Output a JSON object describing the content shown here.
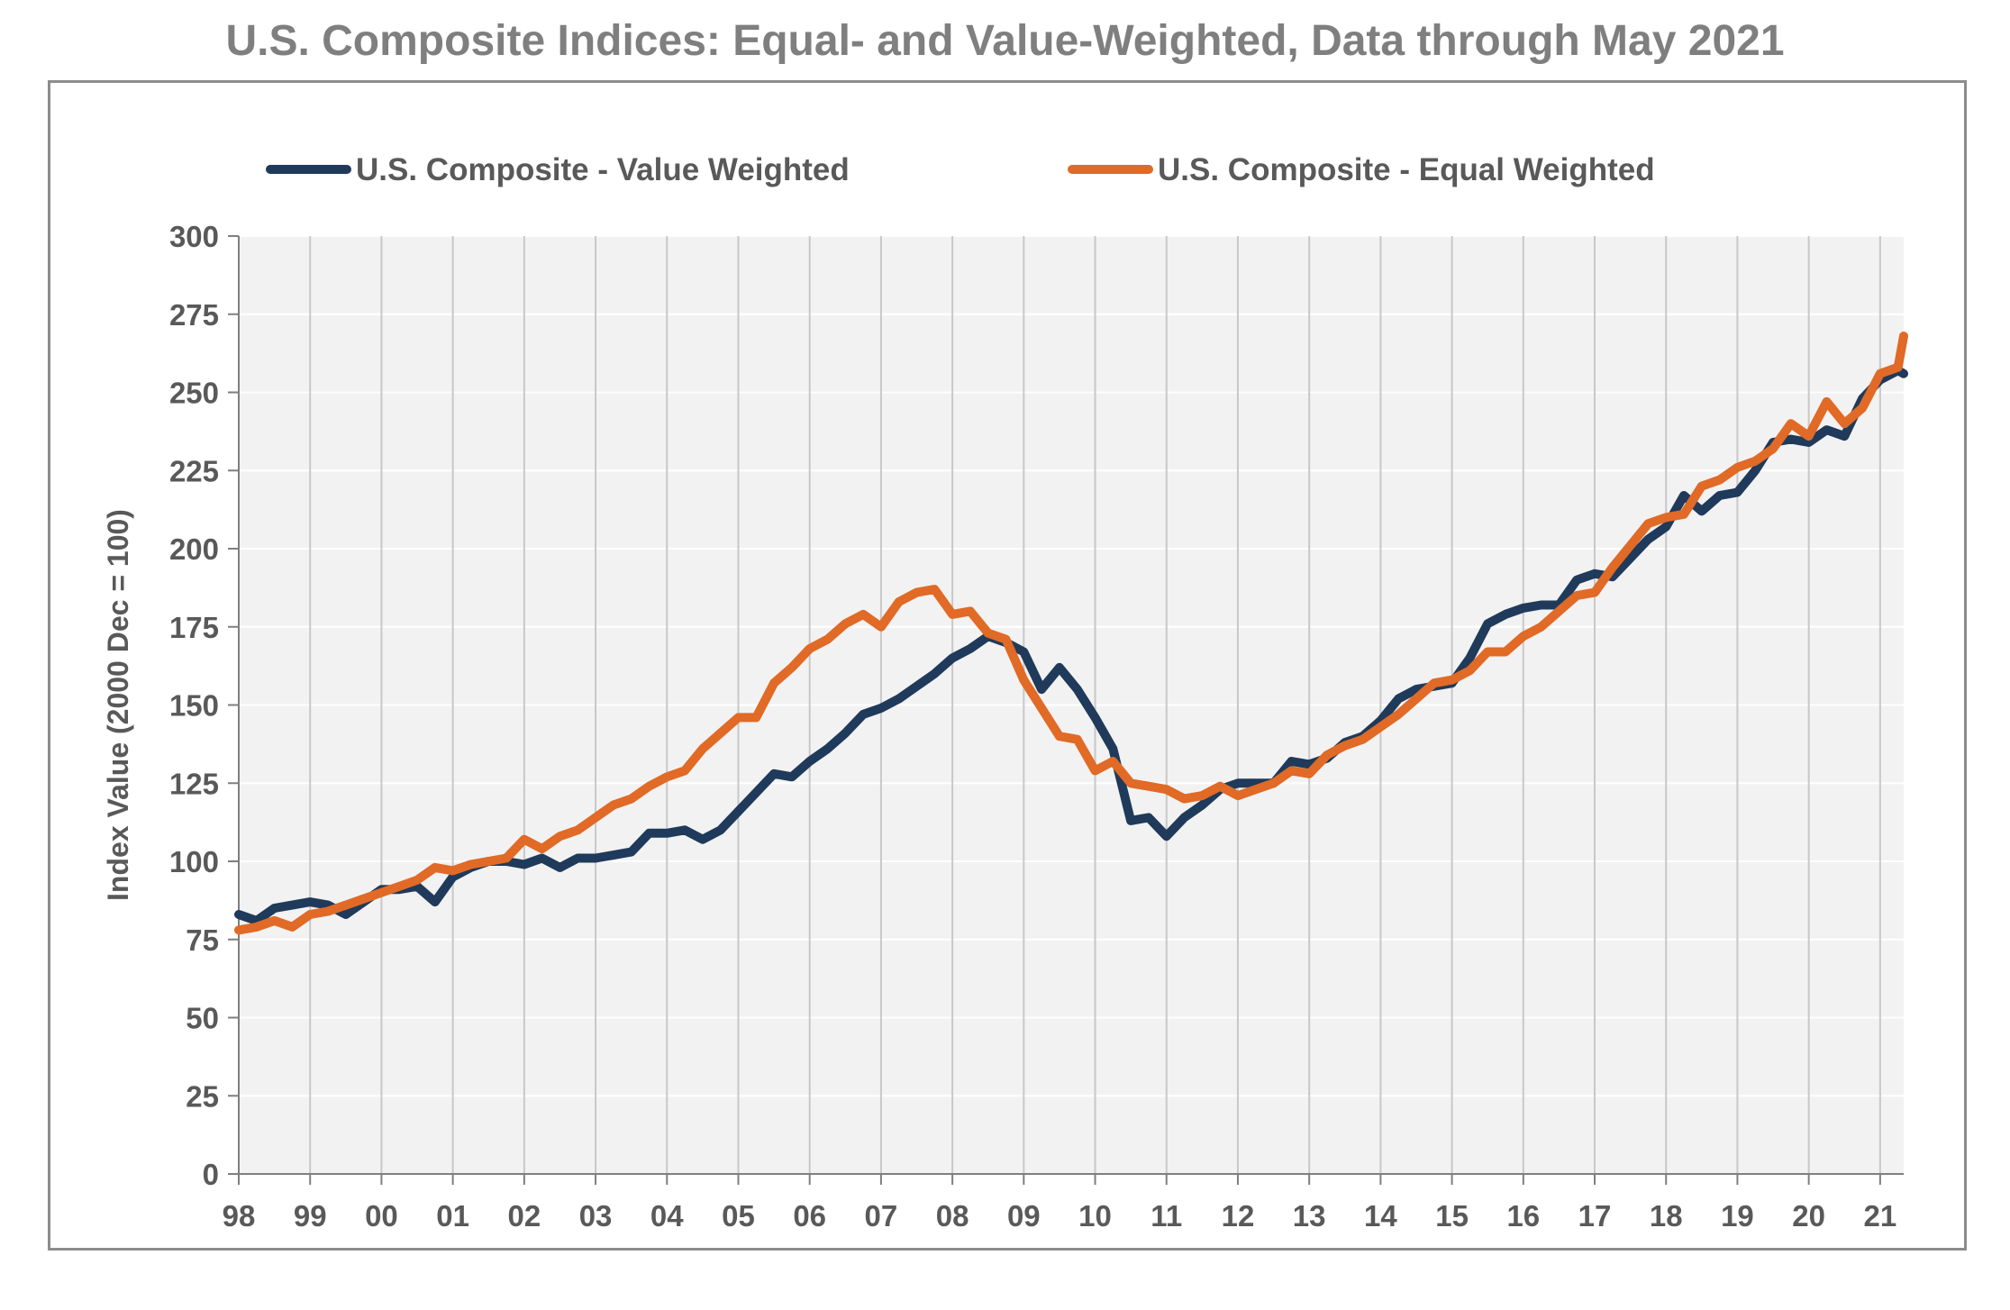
{
  "chart_data": {
    "type": "line",
    "title": "U.S. Composite Indices: Equal- and Value-Weighted, Data through May 2021",
    "xlabel": "",
    "ylabel": "Index Value (2000 Dec = 100)",
    "xlim": [
      1998.0,
      2021.33
    ],
    "ylim": [
      0,
      300
    ],
    "y_ticks": [
      0,
      25,
      50,
      75,
      100,
      125,
      150,
      175,
      200,
      225,
      250,
      275,
      300
    ],
    "x_ticks": [
      1998,
      1999,
      2000,
      2001,
      2002,
      2003,
      2004,
      2005,
      2006,
      2007,
      2008,
      2009,
      2010,
      2011,
      2012,
      2013,
      2014,
      2015,
      2016,
      2017,
      2018,
      2019,
      2020,
      2021
    ],
    "x_tick_labels": [
      "98",
      "99",
      "00",
      "01",
      "02",
      "03",
      "04",
      "05",
      "06",
      "07",
      "08",
      "09",
      "10",
      "11",
      "12",
      "13",
      "14",
      "15",
      "16",
      "17",
      "18",
      "19",
      "20",
      "21"
    ],
    "grid": "vertical",
    "legend_position": "top",
    "series": [
      {
        "name": "U.S. Composite - Value Weighted",
        "color": "#1f3a5a",
        "points": [
          [
            1998.0,
            83
          ],
          [
            1998.25,
            81
          ],
          [
            1998.5,
            85
          ],
          [
            1998.75,
            86
          ],
          [
            1999.0,
            87
          ],
          [
            1999.25,
            86
          ],
          [
            1999.5,
            83
          ],
          [
            1999.75,
            87
          ],
          [
            2000.0,
            91
          ],
          [
            2000.25,
            91
          ],
          [
            2000.5,
            92
          ],
          [
            2000.75,
            87
          ],
          [
            2001.0,
            95
          ],
          [
            2001.25,
            98
          ],
          [
            2001.5,
            100
          ],
          [
            2001.75,
            100
          ],
          [
            2002.0,
            99
          ],
          [
            2002.25,
            101
          ],
          [
            2002.5,
            98
          ],
          [
            2002.75,
            101
          ],
          [
            2003.0,
            101
          ],
          [
            2003.25,
            102
          ],
          [
            2003.5,
            103
          ],
          [
            2003.75,
            109
          ],
          [
            2004.0,
            109
          ],
          [
            2004.25,
            110
          ],
          [
            2004.5,
            107
          ],
          [
            2004.75,
            110
          ],
          [
            2005.0,
            116
          ],
          [
            2005.25,
            122
          ],
          [
            2005.5,
            128
          ],
          [
            2005.75,
            127
          ],
          [
            2006.0,
            132
          ],
          [
            2006.25,
            136
          ],
          [
            2006.5,
            141
          ],
          [
            2006.75,
            147
          ],
          [
            2007.0,
            149
          ],
          [
            2007.25,
            152
          ],
          [
            2007.5,
            156
          ],
          [
            2007.75,
            160
          ],
          [
            2008.0,
            165
          ],
          [
            2008.25,
            168
          ],
          [
            2008.5,
            172
          ],
          [
            2008.75,
            170
          ],
          [
            2009.0,
            167
          ],
          [
            2009.25,
            155
          ],
          [
            2009.5,
            162
          ],
          [
            2009.75,
            155
          ],
          [
            2010.0,
            146
          ],
          [
            2010.25,
            136
          ],
          [
            2010.5,
            113
          ],
          [
            2010.75,
            114
          ],
          [
            2011.0,
            108
          ],
          [
            2011.25,
            114
          ],
          [
            2011.5,
            118
          ],
          [
            2011.75,
            123
          ],
          [
            2012.0,
            125
          ],
          [
            2012.25,
            125
          ],
          [
            2012.5,
            125
          ],
          [
            2012.75,
            132
          ],
          [
            2013.0,
            131
          ],
          [
            2013.25,
            133
          ],
          [
            2013.5,
            138
          ],
          [
            2013.75,
            140
          ],
          [
            2014.0,
            145
          ],
          [
            2014.25,
            152
          ],
          [
            2014.5,
            155
          ],
          [
            2014.75,
            156
          ],
          [
            2015.0,
            157
          ],
          [
            2015.25,
            165
          ],
          [
            2015.5,
            176
          ],
          [
            2015.75,
            179
          ],
          [
            2016.0,
            181
          ],
          [
            2016.25,
            182
          ],
          [
            2016.5,
            182
          ],
          [
            2016.75,
            190
          ],
          [
            2017.0,
            192
          ],
          [
            2017.25,
            191
          ],
          [
            2017.5,
            197
          ],
          [
            2017.75,
            203
          ],
          [
            2018.0,
            207
          ],
          [
            2018.25,
            217
          ],
          [
            2018.5,
            212
          ],
          [
            2018.75,
            217
          ],
          [
            2019.0,
            218
          ],
          [
            2019.25,
            225
          ],
          [
            2019.5,
            234
          ],
          [
            2019.75,
            235
          ],
          [
            2020.0,
            234
          ],
          [
            2020.25,
            238
          ],
          [
            2020.5,
            236
          ],
          [
            2020.75,
            248
          ],
          [
            2021.0,
            254
          ],
          [
            2021.25,
            257
          ],
          [
            2021.33,
            256
          ]
        ]
      },
      {
        "name": "U.S. Composite - Equal Weighted",
        "color": "#e06a26",
        "points": [
          [
            1998.0,
            78
          ],
          [
            1998.25,
            79
          ],
          [
            1998.5,
            81
          ],
          [
            1998.75,
            79
          ],
          [
            1999.0,
            83
          ],
          [
            1999.25,
            84
          ],
          [
            1999.5,
            86
          ],
          [
            1999.75,
            88
          ],
          [
            2000.0,
            90
          ],
          [
            2000.25,
            92
          ],
          [
            2000.5,
            94
          ],
          [
            2000.75,
            98
          ],
          [
            2001.0,
            97
          ],
          [
            2001.25,
            99
          ],
          [
            2001.5,
            100
          ],
          [
            2001.75,
            101
          ],
          [
            2002.0,
            107
          ],
          [
            2002.25,
            104
          ],
          [
            2002.5,
            108
          ],
          [
            2002.75,
            110
          ],
          [
            2003.0,
            114
          ],
          [
            2003.25,
            118
          ],
          [
            2003.5,
            120
          ],
          [
            2003.75,
            124
          ],
          [
            2004.0,
            127
          ],
          [
            2004.25,
            129
          ],
          [
            2004.5,
            136
          ],
          [
            2004.75,
            141
          ],
          [
            2005.0,
            146
          ],
          [
            2005.25,
            146
          ],
          [
            2005.5,
            157
          ],
          [
            2005.75,
            162
          ],
          [
            2006.0,
            168
          ],
          [
            2006.25,
            171
          ],
          [
            2006.5,
            176
          ],
          [
            2006.75,
            179
          ],
          [
            2007.0,
            175
          ],
          [
            2007.25,
            183
          ],
          [
            2007.5,
            186
          ],
          [
            2007.75,
            187
          ],
          [
            2008.0,
            179
          ],
          [
            2008.25,
            180
          ],
          [
            2008.5,
            173
          ],
          [
            2008.75,
            171
          ],
          [
            2009.0,
            158
          ],
          [
            2009.25,
            149
          ],
          [
            2009.5,
            140
          ],
          [
            2009.75,
            139
          ],
          [
            2010.0,
            129
          ],
          [
            2010.25,
            132
          ],
          [
            2010.5,
            125
          ],
          [
            2010.75,
            124
          ],
          [
            2011.0,
            123
          ],
          [
            2011.25,
            120
          ],
          [
            2011.5,
            121
          ],
          [
            2011.75,
            124
          ],
          [
            2012.0,
            121
          ],
          [
            2012.25,
            123
          ],
          [
            2012.5,
            125
          ],
          [
            2012.75,
            129
          ],
          [
            2013.0,
            128
          ],
          [
            2013.25,
            134
          ],
          [
            2013.5,
            137
          ],
          [
            2013.75,
            139
          ],
          [
            2014.0,
            143
          ],
          [
            2014.25,
            147
          ],
          [
            2014.5,
            152
          ],
          [
            2014.75,
            157
          ],
          [
            2015.0,
            158
          ],
          [
            2015.25,
            161
          ],
          [
            2015.5,
            167
          ],
          [
            2015.75,
            167
          ],
          [
            2016.0,
            172
          ],
          [
            2016.25,
            175
          ],
          [
            2016.5,
            180
          ],
          [
            2016.75,
            185
          ],
          [
            2017.0,
            186
          ],
          [
            2017.25,
            194
          ],
          [
            2017.5,
            201
          ],
          [
            2017.75,
            208
          ],
          [
            2018.0,
            210
          ],
          [
            2018.25,
            211
          ],
          [
            2018.5,
            220
          ],
          [
            2018.75,
            222
          ],
          [
            2019.0,
            226
          ],
          [
            2019.25,
            228
          ],
          [
            2019.5,
            232
          ],
          [
            2019.75,
            240
          ],
          [
            2020.0,
            236
          ],
          [
            2020.25,
            247
          ],
          [
            2020.5,
            240
          ],
          [
            2020.75,
            245
          ],
          [
            2021.0,
            256
          ],
          [
            2021.25,
            258
          ],
          [
            2021.33,
            268
          ]
        ]
      }
    ]
  }
}
